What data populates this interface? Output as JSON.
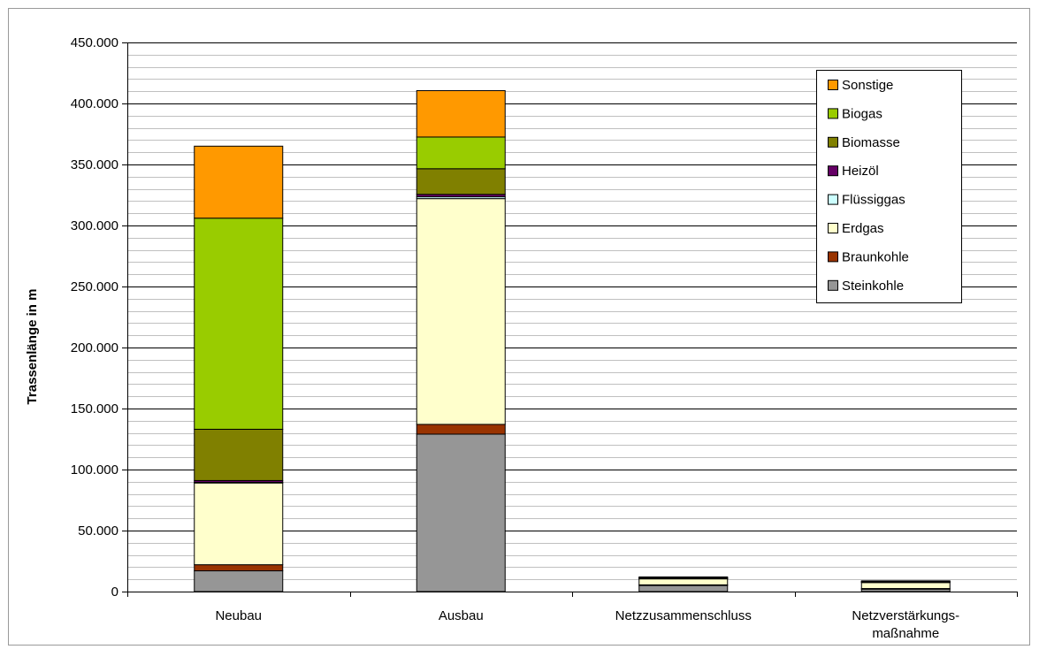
{
  "chart_data": {
    "type": "bar",
    "stacked": true,
    "ylabel": "Trassenlänge in m",
    "xlabel": "",
    "ylim": [
      0,
      450000
    ],
    "y_major_step": 50000,
    "y_minor_step": 10000,
    "y_tick_labels": [
      "0",
      "50.000",
      "100.000",
      "150.000",
      "200.000",
      "250.000",
      "300.000",
      "350.000",
      "400.000",
      "450.000"
    ],
    "categories": [
      [
        "Neubau"
      ],
      [
        "Ausbau"
      ],
      [
        "Netzzusammenschluss"
      ],
      [
        "Netzverstärkungs-",
        "maßnahme"
      ]
    ],
    "grid": true,
    "legend_position": "top-right",
    "legend_order": [
      "Sonstige",
      "Biogas",
      "Biomasse",
      "Heizöl",
      "Flüssiggas",
      "Erdgas",
      "Braunkohle",
      "Steinkohle"
    ],
    "series": [
      {
        "name": "Steinkohle",
        "color": "#969696",
        "values": [
          17000,
          129000,
          5000,
          2000
        ]
      },
      {
        "name": "Braunkohle",
        "color": "#993300",
        "values": [
          5000,
          8000,
          500,
          500
        ]
      },
      {
        "name": "Erdgas",
        "color": "#FFFFCC",
        "values": [
          67000,
          185000,
          5000,
          5000
        ]
      },
      {
        "name": "Flüssiggas",
        "color": "#CCFFFF",
        "values": [
          500,
          1500,
          200,
          200
        ]
      },
      {
        "name": "Heizöl",
        "color": "#660066",
        "values": [
          1500,
          2000,
          200,
          200
        ]
      },
      {
        "name": "Biomasse",
        "color": "#808000",
        "values": [
          42000,
          21000,
          300,
          200
        ]
      },
      {
        "name": "Biogas",
        "color": "#99CC00",
        "values": [
          173000,
          26000,
          300,
          200
        ]
      },
      {
        "name": "Sonstige",
        "color": "#FF9900",
        "values": [
          59000,
          38000,
          500,
          500
        ]
      }
    ]
  }
}
